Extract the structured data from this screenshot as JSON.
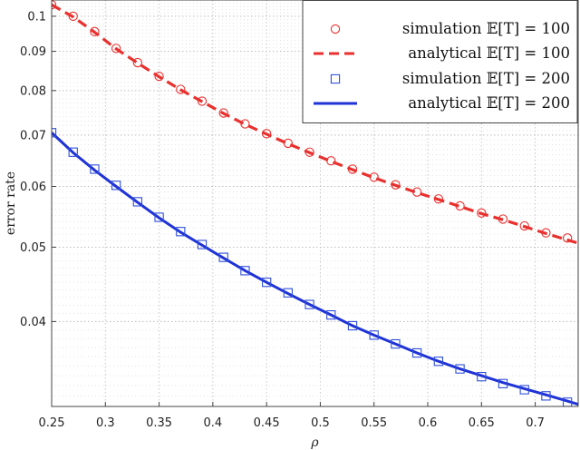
{
  "chart_data": {
    "type": "line",
    "title": "",
    "xlabel": "ρ",
    "ylabel": "error rate",
    "xlim": [
      0.25,
      0.74
    ],
    "ylim": [
      0.031,
      0.105
    ],
    "yscale": "log",
    "grid": "major and minor, dotted",
    "legend_position": "top-right",
    "x_ticks": [
      "0.25",
      "0.3",
      "0.35",
      "0.4",
      "0.45",
      "0.5",
      "0.55",
      "0.6",
      "0.65",
      "0.7"
    ],
    "y_ticks": [
      "0.04",
      "0.05",
      "0.06",
      "0.07",
      "0.08",
      "0.09",
      "0.1"
    ],
    "series": [
      {
        "name": "simulation 𝔼[T] = 100",
        "kind": "markers",
        "marker": "circle",
        "color": "#e8312f",
        "x": [
          0.25,
          0.27,
          0.29,
          0.31,
          0.33,
          0.35,
          0.37,
          0.39,
          0.41,
          0.43,
          0.45,
          0.47,
          0.49,
          0.51,
          0.53,
          0.55,
          0.57,
          0.59,
          0.61,
          0.63,
          0.65,
          0.67,
          0.69,
          0.71,
          0.73
        ],
        "y": [
          0.1035,
          0.1,
          0.0955,
          0.0908,
          0.087,
          0.0835,
          0.0803,
          0.0775,
          0.0748,
          0.0724,
          0.0703,
          0.0683,
          0.0665,
          0.0648,
          0.0632,
          0.0617,
          0.0603,
          0.059,
          0.0578,
          0.0566,
          0.0554,
          0.0544,
          0.0533,
          0.0522,
          0.0514
        ]
      },
      {
        "name": "analytical 𝔼[T] = 100",
        "kind": "line",
        "dash": "dashed",
        "color": "#e8312f",
        "x": [
          0.25,
          0.27,
          0.29,
          0.31,
          0.33,
          0.35,
          0.37,
          0.39,
          0.41,
          0.43,
          0.45,
          0.47,
          0.49,
          0.51,
          0.53,
          0.55,
          0.57,
          0.59,
          0.61,
          0.63,
          0.65,
          0.67,
          0.69,
          0.71,
          0.73,
          0.74
        ],
        "y": [
          0.1035,
          0.0998,
          0.0953,
          0.0907,
          0.0869,
          0.0834,
          0.0802,
          0.0774,
          0.0747,
          0.0723,
          0.0702,
          0.0682,
          0.0664,
          0.0647,
          0.0631,
          0.0616,
          0.0602,
          0.0589,
          0.0577,
          0.0565,
          0.0553,
          0.0543,
          0.0532,
          0.0521,
          0.0511,
          0.0506
        ]
      },
      {
        "name": "simulation 𝔼[T] = 200",
        "kind": "markers",
        "marker": "square",
        "color": "#2f4fd9",
        "x": [
          0.25,
          0.27,
          0.29,
          0.31,
          0.33,
          0.35,
          0.37,
          0.39,
          0.41,
          0.43,
          0.45,
          0.47,
          0.49,
          0.51,
          0.53,
          0.55,
          0.57,
          0.59,
          0.61,
          0.63,
          0.65,
          0.67,
          0.69,
          0.71,
          0.73
        ],
        "y": [
          0.0705,
          0.0665,
          0.0632,
          0.0602,
          0.0573,
          0.0547,
          0.0524,
          0.0504,
          0.0485,
          0.0466,
          0.045,
          0.0436,
          0.0421,
          0.0408,
          0.0395,
          0.0384,
          0.0374,
          0.0364,
          0.0355,
          0.0347,
          0.0339,
          0.0332,
          0.0326,
          0.032,
          0.0314
        ]
      },
      {
        "name": "analytical 𝔼[T] = 200",
        "kind": "line",
        "dash": "solid",
        "color": "#1f33d6",
        "x": [
          0.25,
          0.27,
          0.29,
          0.31,
          0.33,
          0.35,
          0.37,
          0.39,
          0.41,
          0.43,
          0.45,
          0.47,
          0.49,
          0.51,
          0.53,
          0.55,
          0.57,
          0.59,
          0.61,
          0.63,
          0.65,
          0.67,
          0.69,
          0.71,
          0.73,
          0.74
        ],
        "y": [
          0.0705,
          0.0664,
          0.063,
          0.06,
          0.0572,
          0.0546,
          0.0523,
          0.0503,
          0.0484,
          0.0466,
          0.045,
          0.0435,
          0.0421,
          0.0408,
          0.0395,
          0.0384,
          0.0374,
          0.0364,
          0.0355,
          0.0347,
          0.034,
          0.0333,
          0.0327,
          0.0321,
          0.0315,
          0.0312
        ]
      }
    ]
  }
}
